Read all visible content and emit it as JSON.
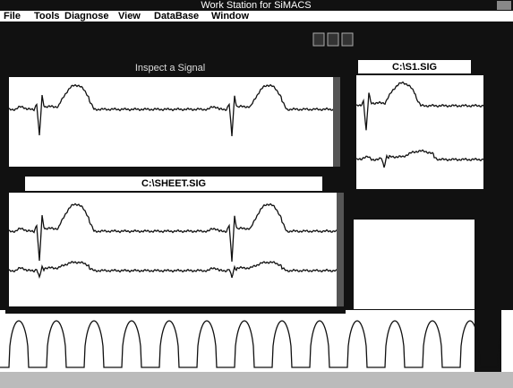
{
  "title_bar": {
    "title": "Work Station for SiMACS"
  },
  "menu": [
    "File",
    "Tools",
    "Diagnose",
    "View",
    "DataBase",
    "Window"
  ],
  "windows": [
    {
      "title": "Inspect a Signal"
    },
    {
      "title": "C:\\S1.SIG"
    },
    {
      "title": "C:\\SHEET.SIG"
    }
  ]
}
